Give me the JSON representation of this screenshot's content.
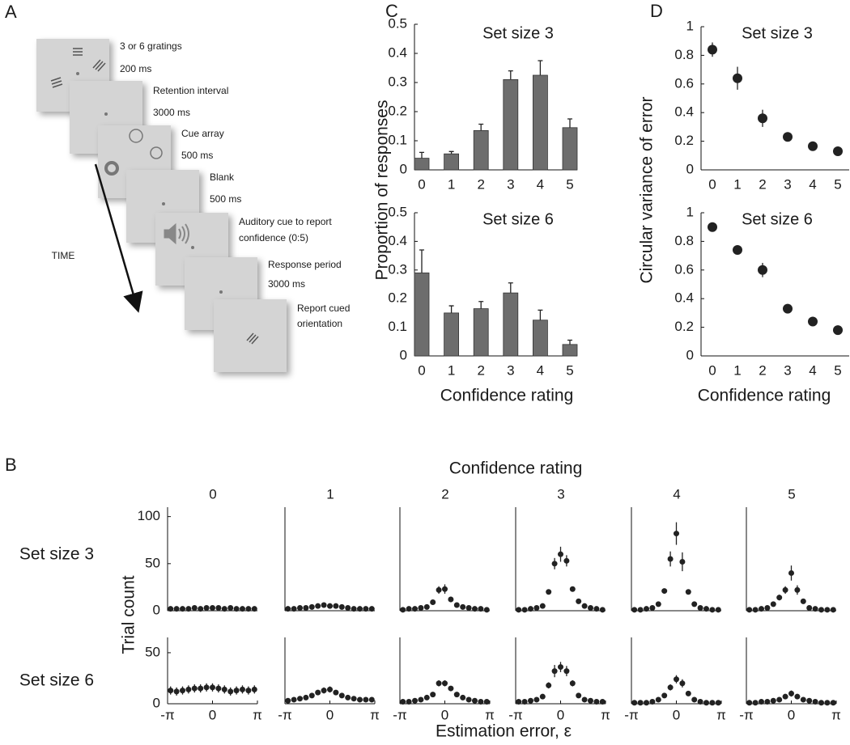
{
  "panel_labels": [
    "A",
    "B",
    "C",
    "D"
  ],
  "panel_a": {
    "steps": [
      [
        "3 or 6 gratings",
        "200 ms"
      ],
      [
        "Retention interval",
        "3000 ms"
      ],
      [
        "Cue array",
        "500 ms"
      ],
      [
        "Blank",
        "500 ms"
      ],
      [
        "Auditory cue to report",
        "confidence (0:5)"
      ],
      [
        "Response period",
        "3000 ms"
      ],
      [
        "Report cued",
        "orientation"
      ]
    ],
    "time_label": "TIME"
  },
  "panel_b": {
    "title": "Confidence rating",
    "row_labels": [
      "Set size 3",
      "Set size 6"
    ],
    "ylabel": "Trial count",
    "xlabel": "Estimation error, ε"
  },
  "chart_data": [
    {
      "type": "bar",
      "title": "Set size 3",
      "ylabel": "Proportion of responses",
      "categories": [
        "0",
        "1",
        "2",
        "3",
        "4",
        "5"
      ],
      "values": [
        0.04,
        0.055,
        0.135,
        0.31,
        0.325,
        0.145
      ],
      "errors": [
        0.02,
        0.008,
        0.022,
        0.03,
        0.05,
        0.03
      ],
      "color": "#6d6d6d",
      "ylim": [
        0,
        0.5
      ],
      "yticks": [
        0,
        0.1,
        0.2,
        0.3,
        0.4,
        0.5
      ]
    },
    {
      "type": "bar",
      "title": "Set size 6",
      "xlabel": "Confidence rating",
      "categories": [
        "0",
        "1",
        "2",
        "3",
        "4",
        "5"
      ],
      "values": [
        0.29,
        0.15,
        0.165,
        0.22,
        0.125,
        0.04
      ],
      "errors": [
        0.08,
        0.025,
        0.025,
        0.035,
        0.035,
        0.015
      ],
      "color": "#6d6d6d",
      "ylim": [
        0,
        0.5
      ],
      "yticks": [
        0,
        0.1,
        0.2,
        0.3,
        0.4,
        0.5
      ]
    },
    {
      "type": "point",
      "title": "Set size 3",
      "ylabel": "Circular variance of error",
      "categories": [
        "0",
        "1",
        "2",
        "3",
        "4",
        "5"
      ],
      "values": [
        0.84,
        0.64,
        0.36,
        0.23,
        0.165,
        0.13
      ],
      "errors": [
        0.05,
        0.08,
        0.06,
        0.025,
        0.01,
        0.01
      ],
      "color": "#222222",
      "ylim": [
        0,
        1
      ],
      "yticks": [
        0,
        0.2,
        0.4,
        0.6,
        0.8,
        1
      ]
    },
    {
      "type": "point",
      "title": "Set size 6",
      "xlabel": "Confidence rating",
      "categories": [
        "0",
        "1",
        "2",
        "3",
        "4",
        "5"
      ],
      "values": [
        0.9,
        0.74,
        0.6,
        0.33,
        0.24,
        0.18
      ],
      "errors": [
        0.01,
        0.03,
        0.05,
        0.02,
        0.01,
        0.02
      ],
      "color": "#222222",
      "ylim": [
        0,
        1
      ],
      "yticks": [
        0,
        0.2,
        0.4,
        0.6,
        0.8,
        1
      ]
    },
    {
      "type": "scatter",
      "title": "0",
      "x": [
        -2.932,
        -2.513,
        -2.094,
        -1.676,
        -1.257,
        -0.838,
        -0.419,
        0,
        0.419,
        0.838,
        1.257,
        1.676,
        2.094,
        2.513,
        2.932
      ],
      "values": [
        2,
        2,
        2,
        2,
        3,
        2,
        3,
        3,
        3,
        2,
        3,
        2,
        2,
        2,
        2
      ],
      "errors": [
        1,
        1,
        1,
        1,
        1,
        1,
        1,
        1,
        1,
        1,
        1,
        1,
        1,
        1,
        1
      ],
      "color": "#222222",
      "xlim": [
        -3.1416,
        3.1416
      ],
      "ylim": [
        0,
        110
      ],
      "yticks": [
        0,
        50,
        100
      ]
    },
    {
      "type": "scatter",
      "title": "1",
      "x": [
        -2.932,
        -2.513,
        -2.094,
        -1.676,
        -1.257,
        -0.838,
        -0.419,
        0,
        0.419,
        0.838,
        1.257,
        1.676,
        2.094,
        2.513,
        2.932
      ],
      "values": [
        2,
        2,
        3,
        3,
        4,
        5,
        6,
        5,
        5,
        4,
        3,
        2,
        2,
        2,
        2
      ],
      "errors": [
        1,
        1,
        1,
        1,
        1,
        1,
        1,
        1,
        1,
        1,
        1,
        1,
        1,
        1,
        1
      ],
      "color": "#222222",
      "xlim": [
        -3.1416,
        3.1416
      ],
      "ylim": [
        0,
        110
      ]
    },
    {
      "type": "scatter",
      "title": "2",
      "x": [
        -2.932,
        -2.513,
        -2.094,
        -1.676,
        -1.257,
        -0.838,
        -0.419,
        0,
        0.419,
        0.838,
        1.257,
        1.676,
        2.094,
        2.513,
        2.932
      ],
      "values": [
        1,
        2,
        2,
        3,
        4,
        9,
        22,
        23,
        12,
        6,
        4,
        3,
        2,
        2,
        1
      ],
      "errors": [
        1,
        1,
        1,
        1,
        1,
        2,
        4,
        5,
        3,
        2,
        1,
        1,
        1,
        1,
        1
      ],
      "color": "#222222",
      "xlim": [
        -3.1416,
        3.1416
      ],
      "ylim": [
        0,
        110
      ]
    },
    {
      "type": "scatter",
      "title": "3",
      "x": [
        -2.932,
        -2.513,
        -2.094,
        -1.676,
        -1.257,
        -0.838,
        -0.419,
        0,
        0.419,
        0.838,
        1.257,
        1.676,
        2.094,
        2.513,
        2.932
      ],
      "values": [
        1,
        1,
        2,
        3,
        5,
        20,
        50,
        60,
        53,
        23,
        10,
        5,
        3,
        2,
        1
      ],
      "errors": [
        0,
        0,
        1,
        1,
        1,
        2,
        6,
        8,
        6,
        2,
        1,
        1,
        1,
        0,
        0
      ],
      "color": "#222222",
      "xlim": [
        -3.1416,
        3.1416
      ],
      "ylim": [
        0,
        110
      ]
    },
    {
      "type": "scatter",
      "title": "4",
      "x": [
        -2.932,
        -2.513,
        -2.094,
        -1.676,
        -1.257,
        -0.838,
        -0.419,
        0,
        0.419,
        0.838,
        1.257,
        1.676,
        2.094,
        2.513,
        2.932
      ],
      "values": [
        1,
        1,
        2,
        3,
        7,
        21,
        55,
        82,
        52,
        20,
        7,
        3,
        2,
        1,
        1
      ],
      "errors": [
        0,
        0,
        1,
        1,
        1,
        2,
        8,
        12,
        10,
        2,
        1,
        1,
        1,
        0,
        0
      ],
      "color": "#222222",
      "xlim": [
        -3.1416,
        3.1416
      ],
      "ylim": [
        0,
        110
      ]
    },
    {
      "type": "scatter",
      "title": "5",
      "x": [
        -2.932,
        -2.513,
        -2.094,
        -1.676,
        -1.257,
        -0.838,
        -0.419,
        0,
        0.419,
        0.838,
        1.257,
        1.676,
        2.094,
        2.513,
        2.932
      ],
      "values": [
        1,
        1,
        2,
        3,
        7,
        14,
        22,
        40,
        22,
        10,
        3,
        2,
        1,
        1,
        1
      ],
      "errors": [
        0,
        0,
        1,
        1,
        1,
        3,
        4,
        8,
        5,
        2,
        1,
        1,
        0,
        0,
        0
      ],
      "color": "#222222",
      "xlim": [
        -3.1416,
        3.1416
      ],
      "ylim": [
        0,
        110
      ]
    },
    {
      "type": "scatter",
      "x": [
        -2.932,
        -2.513,
        -2.094,
        -1.676,
        -1.257,
        -0.838,
        -0.419,
        0,
        0.419,
        0.838,
        1.257,
        1.676,
        2.094,
        2.513,
        2.932
      ],
      "values": [
        13,
        12,
        13,
        14,
        15,
        15,
        16,
        16,
        15,
        14,
        12,
        13,
        14,
        13,
        14
      ],
      "errors": [
        4,
        4,
        4,
        4,
        4,
        4,
        4,
        4,
        4,
        4,
        4,
        4,
        4,
        4,
        4
      ],
      "color": "#222222",
      "xlim": [
        -3.1416,
        3.1416
      ],
      "ylim": [
        0,
        65
      ],
      "yticks": [
        0,
        50
      ],
      "xticks": [
        {
          "value": -3.1416,
          "label": "-π"
        },
        0,
        {
          "value": 3.1416,
          "label": "π"
        }
      ]
    },
    {
      "type": "scatter",
      "x": [
        -2.932,
        -2.513,
        -2.094,
        -1.676,
        -1.257,
        -0.838,
        -0.419,
        0,
        0.419,
        0.838,
        1.257,
        1.676,
        2.094,
        2.513,
        2.932
      ],
      "values": [
        3,
        4,
        5,
        6,
        8,
        11,
        13,
        14,
        11,
        8,
        6,
        5,
        4,
        4,
        4
      ],
      "errors": [
        1,
        1,
        1,
        1,
        2,
        2,
        3,
        3,
        2,
        2,
        1,
        1,
        1,
        1,
        1
      ],
      "color": "#222222",
      "xlim": [
        -3.1416,
        3.1416
      ],
      "ylim": [
        0,
        65
      ],
      "xticks": [
        {
          "value": -3.1416,
          "label": "-π"
        },
        0,
        {
          "value": 3.1416,
          "label": "π"
        }
      ]
    },
    {
      "type": "scatter",
      "x": [
        -2.932,
        -2.513,
        -2.094,
        -1.676,
        -1.257,
        -0.838,
        -0.419,
        0,
        0.419,
        0.838,
        1.257,
        1.676,
        2.094,
        2.513,
        2.932
      ],
      "values": [
        2,
        2,
        3,
        4,
        6,
        9,
        20,
        20,
        15,
        9,
        6,
        4,
        3,
        2,
        2
      ],
      "errors": [
        1,
        1,
        1,
        1,
        1,
        2,
        3,
        3,
        2,
        2,
        1,
        1,
        1,
        1,
        1
      ],
      "color": "#222222",
      "xlim": [
        -3.1416,
        3.1416
      ],
      "ylim": [
        0,
        65
      ],
      "xticks": [
        {
          "value": -3.1416,
          "label": "-π"
        },
        0,
        {
          "value": 3.1416,
          "label": "π"
        }
      ]
    },
    {
      "type": "scatter",
      "x": [
        -2.932,
        -2.513,
        -2.094,
        -1.676,
        -1.257,
        -0.838,
        -0.419,
        0,
        0.419,
        0.838,
        1.257,
        1.676,
        2.094,
        2.513,
        2.932
      ],
      "values": [
        2,
        2,
        3,
        4,
        7,
        18,
        32,
        36,
        32,
        20,
        8,
        4,
        3,
        2,
        2
      ],
      "errors": [
        1,
        1,
        1,
        1,
        2,
        3,
        6,
        5,
        5,
        3,
        2,
        1,
        1,
        1,
        1
      ],
      "color": "#222222",
      "xlim": [
        -3.1416,
        3.1416
      ],
      "ylim": [
        0,
        65
      ],
      "xticks": [
        {
          "value": -3.1416,
          "label": "-π"
        },
        0,
        {
          "value": 3.1416,
          "label": "π"
        }
      ]
    },
    {
      "type": "scatter",
      "x": [
        -2.932,
        -2.513,
        -2.094,
        -1.676,
        -1.257,
        -0.838,
        -0.419,
        0,
        0.419,
        0.838,
        1.257,
        1.676,
        2.094,
        2.513,
        2.932
      ],
      "values": [
        1,
        1,
        1,
        2,
        4,
        8,
        16,
        24,
        20,
        10,
        4,
        2,
        1,
        1,
        1
      ],
      "errors": [
        0,
        0,
        0,
        1,
        1,
        2,
        3,
        4,
        4,
        2,
        1,
        1,
        0,
        0,
        0
      ],
      "color": "#222222",
      "xlim": [
        -3.1416,
        3.1416
      ],
      "ylim": [
        0,
        65
      ],
      "xticks": [
        {
          "value": -3.1416,
          "label": "-π"
        },
        0,
        {
          "value": 3.1416,
          "label": "π"
        }
      ]
    },
    {
      "type": "scatter",
      "x": [
        -2.932,
        -2.513,
        -2.094,
        -1.676,
        -1.257,
        -0.838,
        -0.419,
        0,
        0.419,
        0.838,
        1.257,
        1.676,
        2.094,
        2.513,
        2.932
      ],
      "values": [
        1,
        1,
        2,
        2,
        3,
        4,
        7,
        10,
        7,
        4,
        3,
        2,
        1,
        1,
        1
      ],
      "errors": [
        0,
        0,
        1,
        1,
        1,
        1,
        2,
        3,
        2,
        1,
        1,
        1,
        0,
        0,
        0
      ],
      "color": "#222222",
      "xlim": [
        -3.1416,
        3.1416
      ],
      "ylim": [
        0,
        65
      ],
      "xticks": [
        {
          "value": -3.1416,
          "label": "-π"
        },
        0,
        {
          "value": 3.1416,
          "label": "π"
        }
      ]
    }
  ]
}
